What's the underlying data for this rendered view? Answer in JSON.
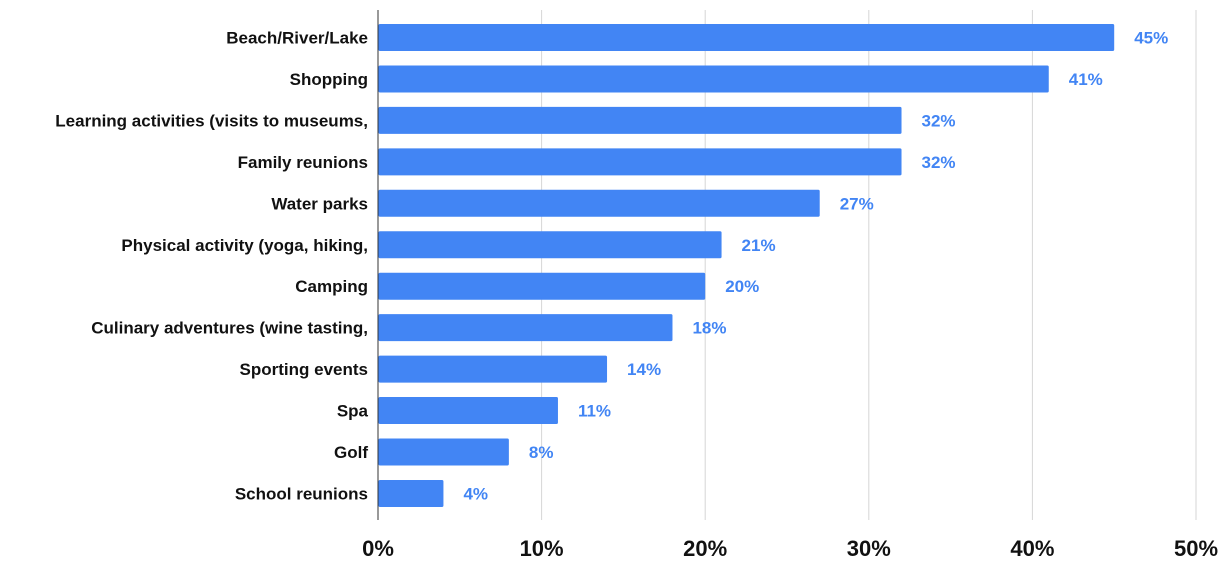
{
  "chart_data": {
    "type": "bar",
    "orientation": "horizontal",
    "categories": [
      "Beach/River/Lake",
      "Shopping",
      "Learning activities (visits to museums,",
      "Family reunions",
      "Water parks",
      "Physical activity (yoga, hiking,",
      "Camping",
      "Culinary adventures (wine tasting,",
      "Sporting events",
      "Spa",
      "Golf",
      "School reunions"
    ],
    "values": [
      45,
      41,
      32,
      32,
      27,
      21,
      20,
      18,
      14,
      11,
      8,
      4
    ],
    "value_labels": [
      "45%",
      "41%",
      "32%",
      "32%",
      "27%",
      "21%",
      "20%",
      "18%",
      "14%",
      "11%",
      "8%",
      "4%"
    ],
    "xlim": [
      0,
      50
    ],
    "xticks": [
      0,
      10,
      20,
      30,
      40,
      50
    ],
    "xtick_labels": [
      "0%",
      "10%",
      "20%",
      "30%",
      "40%",
      "50%"
    ],
    "title": "",
    "xlabel": "",
    "ylabel": "",
    "grid": "vertical",
    "legend": "none",
    "colors": {
      "bar": "#4285f4",
      "value_label": "#4285f4",
      "grid": "#d6d6d6",
      "axis": "#333333",
      "text": "#111111"
    }
  }
}
